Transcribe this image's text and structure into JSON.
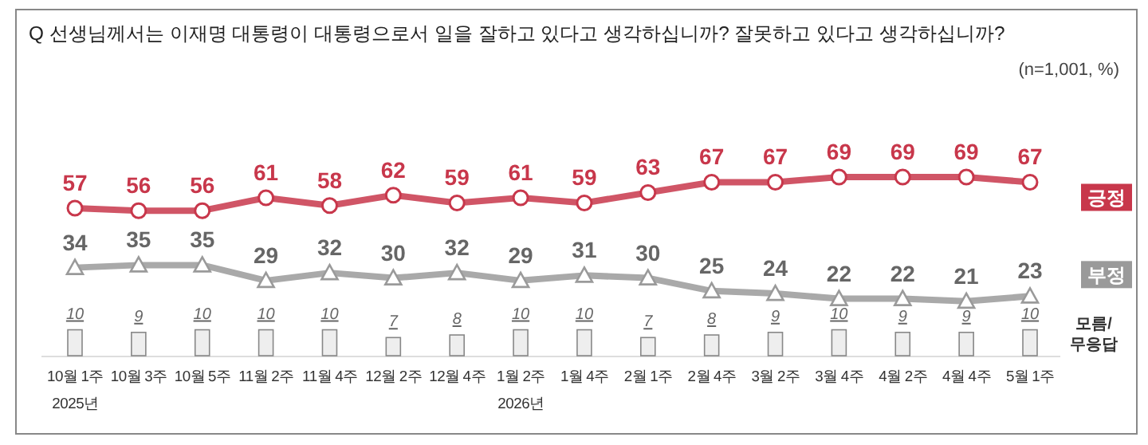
{
  "chart_data": {
    "type": "line",
    "title": "Q 선생님께서는 이재명 대통령이 대통령으로서 일을 잘하고 있다고 생각하십니까? 잘못하고 있다고 생각하십니까?",
    "subtitle": "(n=1,001, %)",
    "categories": [
      "10월 1주\n2025년",
      "10월 3주",
      "10월 5주",
      "11월 2주",
      "11월 4주",
      "12월 2주",
      "12월 4주",
      "1월 2주\n2026년",
      "1월 4주",
      "2월 1주",
      "2월 4주",
      "3월 2주",
      "3월 4주",
      "4월 2주",
      "4월 4주",
      "5월 1주"
    ],
    "series": [
      {
        "name": "긍정",
        "color": "#c8374b",
        "marker": "circle",
        "values": [
          57,
          56,
          56,
          61,
          58,
          62,
          59,
          61,
          59,
          63,
          67,
          67,
          69,
          69,
          69,
          67
        ]
      },
      {
        "name": "부정",
        "color": "#9a9a9a",
        "marker": "triangle",
        "values": [
          34,
          35,
          35,
          29,
          32,
          30,
          32,
          29,
          31,
          30,
          25,
          24,
          22,
          22,
          21,
          23
        ]
      },
      {
        "name": "모름/무응답",
        "type": "bar",
        "color": "#eeeeee",
        "values": [
          10,
          9,
          10,
          10,
          10,
          7,
          8,
          10,
          10,
          7,
          8,
          9,
          10,
          9,
          9,
          10
        ]
      }
    ],
    "data_labels": true
  }
}
